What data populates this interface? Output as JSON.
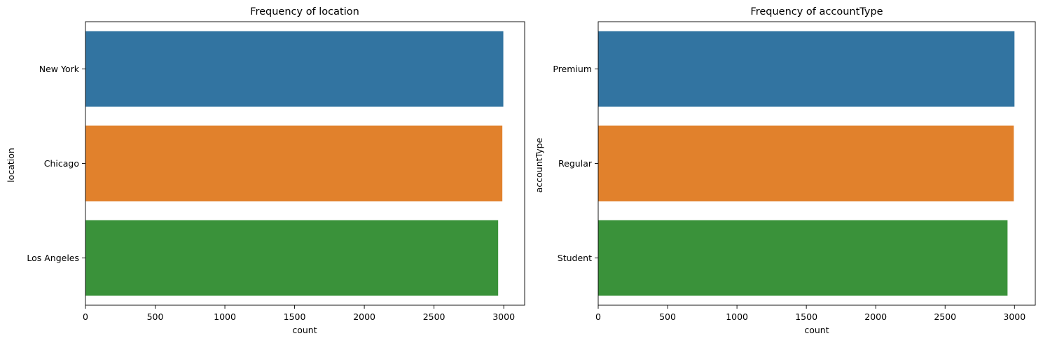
{
  "chart_data": [
    {
      "type": "bar",
      "orientation": "horizontal",
      "title": "Frequency of location",
      "xlabel": "count",
      "ylabel": "location",
      "categories": [
        "New York",
        "Chicago",
        "Los Angeles"
      ],
      "values": [
        2997,
        2990,
        2960
      ],
      "colors": [
        "#3274a1",
        "#e1812c",
        "#3a923a"
      ],
      "xlim": [
        0,
        3150
      ],
      "xticks": [
        0,
        500,
        1000,
        1500,
        2000,
        2500,
        3000
      ],
      "grid": false
    },
    {
      "type": "bar",
      "orientation": "horizontal",
      "title": "Frequency of accountType",
      "xlabel": "count",
      "ylabel": "accountType",
      "categories": [
        "Premium",
        "Regular",
        "Student"
      ],
      "values": [
        3000,
        2995,
        2950
      ],
      "colors": [
        "#3274a1",
        "#e1812c",
        "#3a923a"
      ],
      "xlim": [
        0,
        3150
      ],
      "xticks": [
        0,
        500,
        1000,
        1500,
        2000,
        2500,
        3000
      ],
      "grid": false
    }
  ]
}
